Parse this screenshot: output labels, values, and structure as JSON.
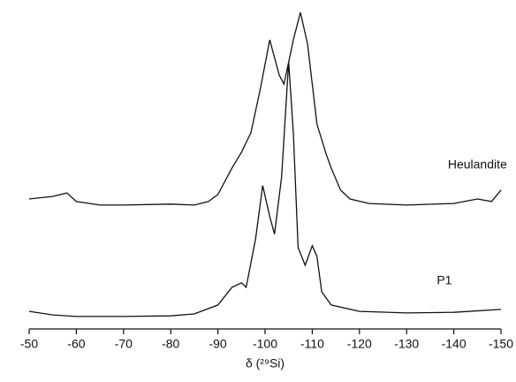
{
  "chart_data": {
    "type": "line",
    "x_label": "δ (²⁹Si)",
    "xlim": [
      -50,
      -150
    ],
    "xticks": [
      -50,
      -60,
      -70,
      -80,
      -90,
      -100,
      -110,
      -120,
      -130,
      -140,
      -150
    ],
    "ylim": [
      0,
      100
    ],
    "series": [
      {
        "name": "Heulandite",
        "color": "#111111",
        "x": [
          -50,
          -55,
          -58,
          -60,
          -65,
          -70,
          -80,
          -85,
          -88,
          -90,
          -93,
          -95,
          -97,
          -99,
          -101,
          -103,
          -104,
          -106,
          -107.5,
          -109,
          -111,
          -113,
          -114,
          -116,
          -118,
          -122,
          -130,
          -140,
          -145,
          -148,
          -150
        ],
        "values": [
          40.6,
          41.4,
          42.5,
          39.8,
          38.7,
          38.7,
          39,
          38.7,
          39.8,
          42,
          50.3,
          55.2,
          61.3,
          75.1,
          90.3,
          79.3,
          76.5,
          90.3,
          98.9,
          89,
          64,
          54.4,
          50.3,
          43.4,
          40.6,
          39.2,
          38.7,
          39.2,
          40.6,
          39.8,
          43.4
        ]
      },
      {
        "name": "P1",
        "color": "#111111",
        "x": [
          -50,
          -55,
          -60,
          -70,
          -80,
          -85,
          -90,
          -93,
          -95,
          -96,
          -98,
          -99.5,
          -101,
          -102,
          -103.5,
          -105,
          -106,
          -107,
          -108.5,
          -110,
          -111,
          -112,
          -114,
          -120,
          -130,
          -140,
          -150
        ],
        "values": [
          5.5,
          4.4,
          3.9,
          3.9,
          4.1,
          4.7,
          7.5,
          13,
          14.4,
          13,
          28.2,
          44.8,
          35.1,
          29.6,
          47.5,
          83.4,
          61.3,
          25.4,
          19.9,
          26,
          22.7,
          11.6,
          7.5,
          5.5,
          5,
          5.2,
          6.1
        ]
      }
    ]
  }
}
